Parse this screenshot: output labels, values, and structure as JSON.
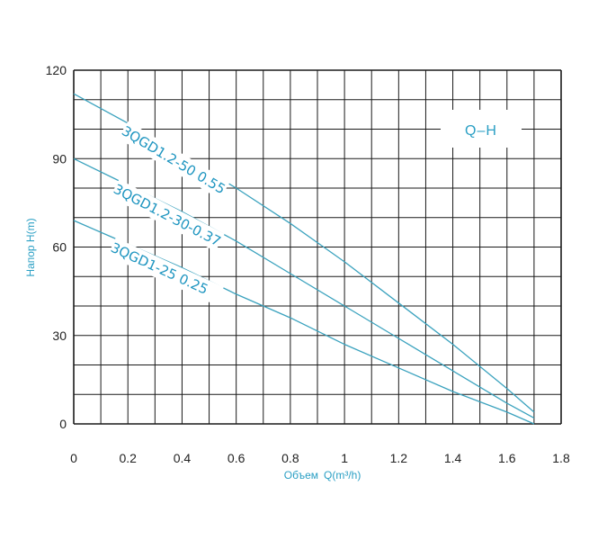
{
  "chart_data": {
    "type": "line",
    "title": "",
    "legend_box": "Q–H",
    "xlabel": "Объем",
    "xlabel_unit": "Q(m³/h)",
    "ylabel": "Напор H(m)",
    "xlim": [
      0,
      1.8
    ],
    "ylim": [
      0,
      120
    ],
    "x_ticks": [
      "0",
      "0.2",
      "0.4",
      "0.6",
      "0.8",
      "1",
      "1.2",
      "1.4",
      "1.6",
      "1.8"
    ],
    "y_ticks": [
      "0",
      "30",
      "60",
      "90",
      "120"
    ],
    "grid": true,
    "legend_position": "top-right",
    "series": [
      {
        "name": "3QGD1.2-50 0.55",
        "x": [
          0,
          0.2,
          0.4,
          0.6,
          0.8,
          1.0,
          1.2,
          1.4,
          1.6,
          1.7
        ],
        "y": [
          112,
          102,
          91,
          80,
          68,
          55,
          41,
          27,
          12,
          4
        ]
      },
      {
        "name": "3QGD1.2-30-0.37",
        "x": [
          0,
          0.2,
          0.4,
          0.6,
          0.8,
          1.0,
          1.2,
          1.4,
          1.6,
          1.7
        ],
        "y": [
          90,
          81,
          72,
          62,
          51,
          40,
          29,
          18,
          7,
          2
        ]
      },
      {
        "name": "3QGD1-25 0.25",
        "x": [
          0,
          0.2,
          0.4,
          0.6,
          0.8,
          1.0,
          1.2,
          1.4,
          1.6,
          1.7
        ],
        "y": [
          69,
          61,
          53,
          44,
          36,
          27,
          19,
          11,
          4,
          0
        ]
      }
    ],
    "colors": {
      "curve": "#3aa2be",
      "grid": "#1a1a1a",
      "label": "#2a9fc4"
    }
  }
}
